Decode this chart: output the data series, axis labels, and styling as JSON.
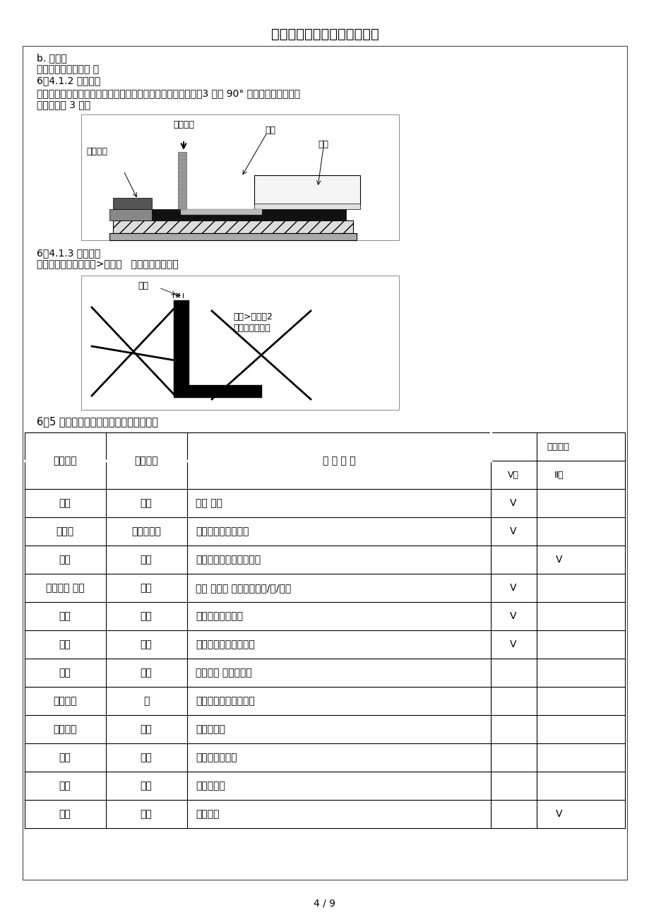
{
  "title": "包装类物料来料检查标准剖析",
  "page_num": "4 / 9",
  "bg_color": "#ffffff",
  "text_color": "#000000",
  "texts": {
    "b_eraser": "b. 橡皮擦",
    "normal_type": "普通型，无特殊要求 。",
    "method_title": "6）4.1.2 试验方法",
    "method_line1": "将胶纸贴在印刷文字上面并用橡皮擦把胶纸与被测面完全压紧，3 秒内 90° 角迅速拉起胶带，同",
    "method_line2": "一位置连续 3 次。",
    "judge_title": "6）4.1.3 判定方法",
    "judge_line": "印刷文字脱落线宽缺口>线宽的   倍判定为不合格。",
    "force": "用力方向",
    "tape": "胶纸",
    "base": "底材",
    "print_text": "印刷文字",
    "line_width": "线宽",
    "defect_label": "缺口>线宽的2\n倍判定为不合格",
    "section5": "6）5 黑白盒、白盒的检查项目及缺陷判定",
    "col0": "检查项目",
    "col1": "测试工具",
    "col2": "缺 陷 判 定",
    "col3": "缺陷等级",
    "sub3": "V级",
    "sub4": "Ⅱ级"
  },
  "table_rows": [
    [
      "外观",
      "目测",
      "脏污 破损",
      "V",
      ""
    ],
    [
      "条形码",
      "条码扫描仪",
      "不能扫描或数字错误",
      "V",
      ""
    ],
    [
      "颜色",
      "目测",
      "与签样比较，超出限度板",
      "",
      "V"
    ],
    [
      "印刷图案 文字",
      "目测",
      "偏位 不完整 与资料不符错/漏/模糊",
      "V",
      ""
    ],
    [
      "尺寸",
      "卷尺",
      "超出图纸规格要求",
      "V",
      ""
    ],
    [
      "折痕",
      "目视",
      "遗漏、错位、不易折叠",
      "V",
      ""
    ],
    [
      "纸质",
      "目测",
      "核对资料 与签样比较",
      "",
      ""
    ],
    [
      "折叠爆裂",
      "手",
      "折叠后纸箱外裱纸开裂",
      "",
      ""
    ],
    [
      "瓦楞方向",
      "目测",
      "与样板不符",
      "",
      ""
    ],
    [
      "厚度",
      "直尺",
      "不在公差范围内",
      "",
      ""
    ],
    [
      "切割",
      "目视",
      "偏位、毛刺",
      "",
      ""
    ],
    [
      "装订",
      "目测",
      "钉子生锈",
      "",
      "V"
    ]
  ]
}
